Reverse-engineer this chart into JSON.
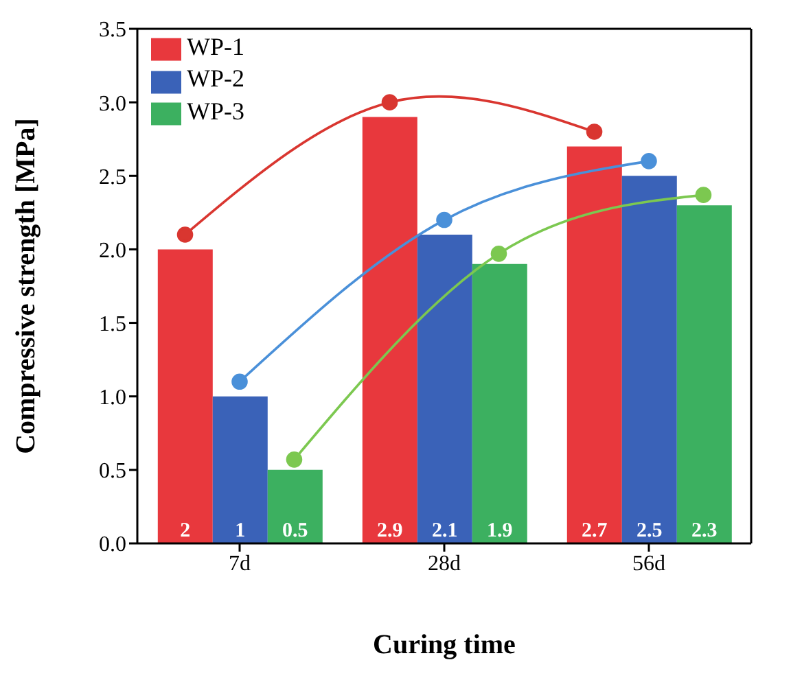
{
  "chart_data": {
    "type": "bar",
    "xlabel": "Curing time",
    "ylabel": "Compressive strength [MPa]",
    "categories": [
      "7d",
      "28d",
      "56d"
    ],
    "series": [
      {
        "name": "WP-1",
        "color": "#e8383d",
        "values": [
          2,
          2.9,
          2.7
        ],
        "value_labels": [
          "2",
          "2.9",
          "2.7"
        ]
      },
      {
        "name": "WP-2",
        "color": "#3a62b8",
        "values": [
          1,
          2.1,
          2.5
        ],
        "value_labels": [
          "1",
          "2.1",
          "2.5"
        ]
      },
      {
        "name": "WP-3",
        "color": "#3cb060",
        "values": [
          0.5,
          1.9,
          2.3
        ],
        "value_labels": [
          "0.5",
          "1.9",
          "2.3"
        ]
      },
      {
        "type": "line",
        "color": "#d93630",
        "values": [
          2.1,
          3.0,
          2.8
        ]
      },
      {
        "type": "line",
        "color": "#4a90d9",
        "values": [
          1.1,
          2.2,
          2.6
        ]
      },
      {
        "type": "line",
        "color": "#7cc850",
        "values": [
          0.57,
          1.97,
          2.37
        ]
      }
    ],
    "ylim": [
      0,
      3.5
    ],
    "yticks": [
      {
        "value": 0,
        "label": "0.0"
      },
      {
        "value": 0.5,
        "label": "0.5"
      },
      {
        "value": 1,
        "label": "1.0"
      },
      {
        "value": 1.5,
        "label": "1.5"
      },
      {
        "value": 2,
        "label": "2.0"
      },
      {
        "value": 2.5,
        "label": "2.5"
      },
      {
        "value": 3,
        "label": "3.0"
      },
      {
        "value": 3.5,
        "label": "3.5"
      }
    ],
    "legend": "top left",
    "marker": "circle",
    "line_style": "solid",
    "grid": false
  }
}
